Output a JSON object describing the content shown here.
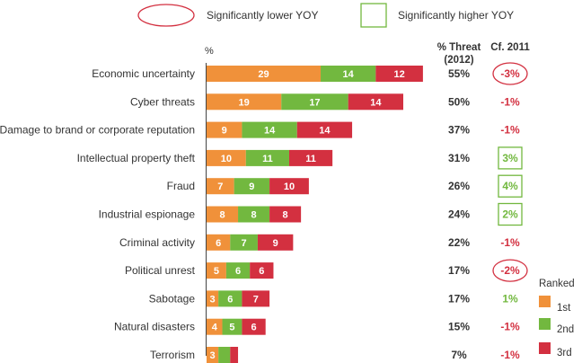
{
  "legend": {
    "lower_label": "Significantly lower YOY",
    "higher_label": "Significantly higher YOY"
  },
  "header": {
    "unit": "%",
    "threat_label_line1": "% Threat",
    "threat_label_line2": "(2012)",
    "cf_label": "Cf. 2011"
  },
  "ranked": {
    "title": "Ranked",
    "items": [
      "1st",
      "2nd",
      "3rd"
    ]
  },
  "colors": {
    "first": "#f0913a",
    "second": "#72b83f",
    "third": "#d33040",
    "lower": "#d33040",
    "higher": "#72b83f",
    "neutral_text": "#d33040"
  },
  "chart_data": {
    "type": "bar",
    "orientation": "horizontal",
    "stacked": true,
    "categories": [
      "Economic uncertainty",
      "Cyber threats",
      "Damage to brand or corporate reputation",
      "Intellectual property theft",
      "Fraud",
      "Industrial espionage",
      "Criminal activity",
      "Political unrest",
      "Sabotage",
      "Natural disasters",
      "Terrorism"
    ],
    "series": [
      {
        "name": "1st",
        "values": [
          29,
          19,
          9,
          10,
          7,
          8,
          6,
          5,
          3,
          4,
          3
        ]
      },
      {
        "name": "2nd",
        "values": [
          14,
          17,
          14,
          11,
          9,
          8,
          7,
          6,
          6,
          5,
          3
        ]
      },
      {
        "name": "3rd",
        "values": [
          12,
          14,
          14,
          11,
          10,
          8,
          9,
          6,
          7,
          6,
          2
        ]
      }
    ],
    "segment_labels": [
      [
        "29",
        "14",
        "12"
      ],
      [
        "19",
        "17",
        "14"
      ],
      [
        "9",
        "14",
        "14"
      ],
      [
        "10",
        "11",
        "11"
      ],
      [
        "7",
        "9",
        "10"
      ],
      [
        "8",
        "8",
        "8"
      ],
      [
        "6",
        "7",
        "9"
      ],
      [
        "5",
        "6",
        "6"
      ],
      [
        "3",
        "6",
        "7"
      ],
      [
        "4",
        "5",
        "6"
      ],
      [
        "3",
        "",
        ""
      ]
    ],
    "threat_2012": [
      "55%",
      "50%",
      "37%",
      "31%",
      "26%",
      "24%",
      "22%",
      "17%",
      "17%",
      "15%",
      "7%"
    ],
    "cf_2011": [
      "-3%",
      "-1%",
      "-1%",
      "3%",
      "4%",
      "2%",
      "-1%",
      "-2%",
      "1%",
      "-1%",
      "-1%"
    ],
    "cf_2011_flag": [
      "lower",
      "none",
      "none",
      "higher",
      "higher",
      "higher",
      "none",
      "lower",
      "none-positive",
      "none",
      "none"
    ],
    "xlim": [
      0,
      60
    ]
  }
}
